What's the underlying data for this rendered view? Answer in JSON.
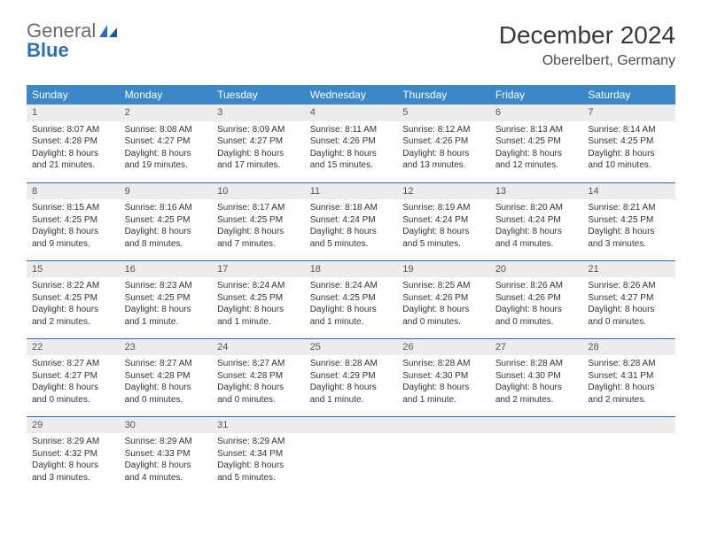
{
  "logo": {
    "text1": "General",
    "text2": "Blue"
  },
  "title": "December 2024",
  "location": "Oberelbert, Germany",
  "colors": {
    "header_bg": "#3b87c8",
    "header_text": "#ffffff",
    "daynum_bg": "#ececec",
    "border": "#2b6fb5",
    "text": "#333333",
    "logo_gray": "#6a6a6a",
    "logo_blue": "#2b6fb5"
  },
  "weekdays": [
    "Sunday",
    "Monday",
    "Tuesday",
    "Wednesday",
    "Thursday",
    "Friday",
    "Saturday"
  ],
  "weeks": [
    [
      {
        "n": "1",
        "sr": "Sunrise: 8:07 AM",
        "ss": "Sunset: 4:28 PM",
        "dl": "Daylight: 8 hours and 21 minutes."
      },
      {
        "n": "2",
        "sr": "Sunrise: 8:08 AM",
        "ss": "Sunset: 4:27 PM",
        "dl": "Daylight: 8 hours and 19 minutes."
      },
      {
        "n": "3",
        "sr": "Sunrise: 8:09 AM",
        "ss": "Sunset: 4:27 PM",
        "dl": "Daylight: 8 hours and 17 minutes."
      },
      {
        "n": "4",
        "sr": "Sunrise: 8:11 AM",
        "ss": "Sunset: 4:26 PM",
        "dl": "Daylight: 8 hours and 15 minutes."
      },
      {
        "n": "5",
        "sr": "Sunrise: 8:12 AM",
        "ss": "Sunset: 4:26 PM",
        "dl": "Daylight: 8 hours and 13 minutes."
      },
      {
        "n": "6",
        "sr": "Sunrise: 8:13 AM",
        "ss": "Sunset: 4:25 PM",
        "dl": "Daylight: 8 hours and 12 minutes."
      },
      {
        "n": "7",
        "sr": "Sunrise: 8:14 AM",
        "ss": "Sunset: 4:25 PM",
        "dl": "Daylight: 8 hours and 10 minutes."
      }
    ],
    [
      {
        "n": "8",
        "sr": "Sunrise: 8:15 AM",
        "ss": "Sunset: 4:25 PM",
        "dl": "Daylight: 8 hours and 9 minutes."
      },
      {
        "n": "9",
        "sr": "Sunrise: 8:16 AM",
        "ss": "Sunset: 4:25 PM",
        "dl": "Daylight: 8 hours and 8 minutes."
      },
      {
        "n": "10",
        "sr": "Sunrise: 8:17 AM",
        "ss": "Sunset: 4:25 PM",
        "dl": "Daylight: 8 hours and 7 minutes."
      },
      {
        "n": "11",
        "sr": "Sunrise: 8:18 AM",
        "ss": "Sunset: 4:24 PM",
        "dl": "Daylight: 8 hours and 5 minutes."
      },
      {
        "n": "12",
        "sr": "Sunrise: 8:19 AM",
        "ss": "Sunset: 4:24 PM",
        "dl": "Daylight: 8 hours and 5 minutes."
      },
      {
        "n": "13",
        "sr": "Sunrise: 8:20 AM",
        "ss": "Sunset: 4:24 PM",
        "dl": "Daylight: 8 hours and 4 minutes."
      },
      {
        "n": "14",
        "sr": "Sunrise: 8:21 AM",
        "ss": "Sunset: 4:25 PM",
        "dl": "Daylight: 8 hours and 3 minutes."
      }
    ],
    [
      {
        "n": "15",
        "sr": "Sunrise: 8:22 AM",
        "ss": "Sunset: 4:25 PM",
        "dl": "Daylight: 8 hours and 2 minutes."
      },
      {
        "n": "16",
        "sr": "Sunrise: 8:23 AM",
        "ss": "Sunset: 4:25 PM",
        "dl": "Daylight: 8 hours and 1 minute."
      },
      {
        "n": "17",
        "sr": "Sunrise: 8:24 AM",
        "ss": "Sunset: 4:25 PM",
        "dl": "Daylight: 8 hours and 1 minute."
      },
      {
        "n": "18",
        "sr": "Sunrise: 8:24 AM",
        "ss": "Sunset: 4:25 PM",
        "dl": "Daylight: 8 hours and 1 minute."
      },
      {
        "n": "19",
        "sr": "Sunrise: 8:25 AM",
        "ss": "Sunset: 4:26 PM",
        "dl": "Daylight: 8 hours and 0 minutes."
      },
      {
        "n": "20",
        "sr": "Sunrise: 8:26 AM",
        "ss": "Sunset: 4:26 PM",
        "dl": "Daylight: 8 hours and 0 minutes."
      },
      {
        "n": "21",
        "sr": "Sunrise: 8:26 AM",
        "ss": "Sunset: 4:27 PM",
        "dl": "Daylight: 8 hours and 0 minutes."
      }
    ],
    [
      {
        "n": "22",
        "sr": "Sunrise: 8:27 AM",
        "ss": "Sunset: 4:27 PM",
        "dl": "Daylight: 8 hours and 0 minutes."
      },
      {
        "n": "23",
        "sr": "Sunrise: 8:27 AM",
        "ss": "Sunset: 4:28 PM",
        "dl": "Daylight: 8 hours and 0 minutes."
      },
      {
        "n": "24",
        "sr": "Sunrise: 8:27 AM",
        "ss": "Sunset: 4:28 PM",
        "dl": "Daylight: 8 hours and 0 minutes."
      },
      {
        "n": "25",
        "sr": "Sunrise: 8:28 AM",
        "ss": "Sunset: 4:29 PM",
        "dl": "Daylight: 8 hours and 1 minute."
      },
      {
        "n": "26",
        "sr": "Sunrise: 8:28 AM",
        "ss": "Sunset: 4:30 PM",
        "dl": "Daylight: 8 hours and 1 minute."
      },
      {
        "n": "27",
        "sr": "Sunrise: 8:28 AM",
        "ss": "Sunset: 4:30 PM",
        "dl": "Daylight: 8 hours and 2 minutes."
      },
      {
        "n": "28",
        "sr": "Sunrise: 8:28 AM",
        "ss": "Sunset: 4:31 PM",
        "dl": "Daylight: 8 hours and 2 minutes."
      }
    ],
    [
      {
        "n": "29",
        "sr": "Sunrise: 8:29 AM",
        "ss": "Sunset: 4:32 PM",
        "dl": "Daylight: 8 hours and 3 minutes."
      },
      {
        "n": "30",
        "sr": "Sunrise: 8:29 AM",
        "ss": "Sunset: 4:33 PM",
        "dl": "Daylight: 8 hours and 4 minutes."
      },
      {
        "n": "31",
        "sr": "Sunrise: 8:29 AM",
        "ss": "Sunset: 4:34 PM",
        "dl": "Daylight: 8 hours and 5 minutes."
      },
      {
        "empty": true
      },
      {
        "empty": true
      },
      {
        "empty": true
      },
      {
        "empty": true
      }
    ]
  ]
}
